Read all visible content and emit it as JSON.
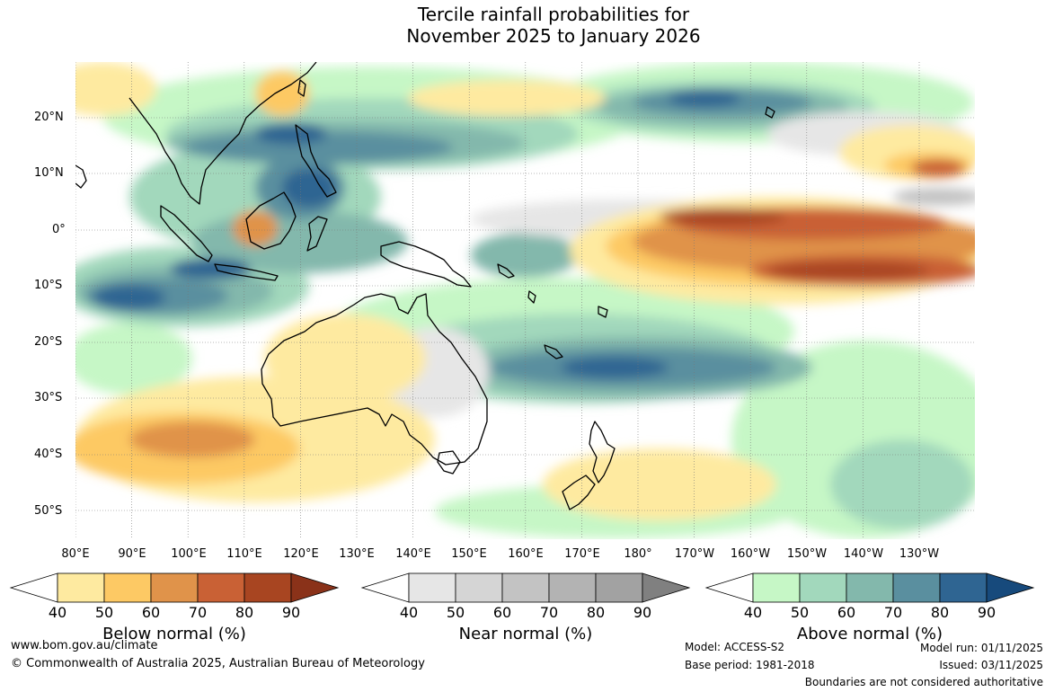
{
  "title": {
    "line1": "Tercile rainfall probabilities for",
    "line2": "November 2025 to January 2026"
  },
  "lat_labels": [
    "20°N",
    "10°N",
    "0°",
    "10°S",
    "20°S",
    "30°S",
    "40°S",
    "50°S"
  ],
  "lon_labels": [
    "80°E",
    "90°E",
    "100°E",
    "110°E",
    "120°E",
    "130°E",
    "140°E",
    "150°E",
    "160°E",
    "170°E",
    "180°",
    "170°W",
    "160°W",
    "150°W",
    "140°W",
    "130°W"
  ],
  "legends": [
    {
      "title": "Below normal (%)",
      "ticks": [
        "40",
        "50",
        "60",
        "70",
        "80",
        "90"
      ],
      "colors": [
        "#ffffff",
        "#feeaa0",
        "#fdc964",
        "#e0934a",
        "#c96135",
        "#a84521",
        "#8a3219"
      ]
    },
    {
      "title": "Near normal (%)",
      "ticks": [
        "40",
        "50",
        "60",
        "70",
        "80",
        "90"
      ],
      "colors": [
        "#ffffff",
        "#e6e6e6",
        "#d5d5d5",
        "#c3c3c3",
        "#b3b3b3",
        "#a2a2a2",
        "#808080"
      ]
    },
    {
      "title": "Above normal (%)",
      "ticks": [
        "40",
        "50",
        "60",
        "70",
        "80",
        "90"
      ],
      "colors": [
        "#ffffff",
        "#c6f7c6",
        "#a2d8bc",
        "#83b8ac",
        "#5a8f9f",
        "#2f6592",
        "#174a7c"
      ]
    }
  ],
  "footer": {
    "url": "www.bom.gov.au/climate",
    "copyright": "© Commonwealth of Australia 2025, Australian Bureau of Meteorology",
    "model": "Model: ACCESS-S2",
    "base_period": "Base period: 1981-2018",
    "model_run": "Model run: 01/11/2025",
    "issued": "Issued: 03/11/2025",
    "disclaimer": "Boundaries are not considered authoritative"
  }
}
